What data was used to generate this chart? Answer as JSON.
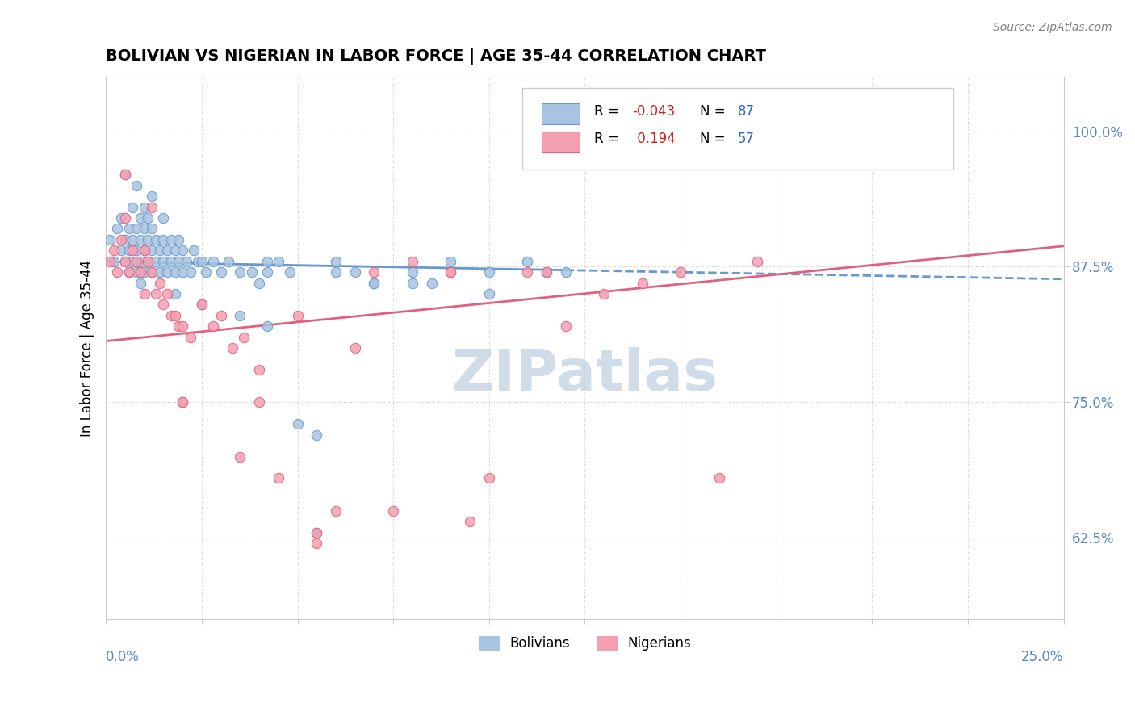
{
  "title": "BOLIVIAN VS NIGERIAN IN LABOR FORCE | AGE 35-44 CORRELATION CHART",
  "source_text": "Source: ZipAtlas.com",
  "ylabel": "In Labor Force | Age 35-44",
  "ytick_values": [
    0.625,
    0.75,
    0.875,
    1.0
  ],
  "xlim": [
    0.0,
    0.25
  ],
  "ylim": [
    0.55,
    1.05
  ],
  "blue_R": -0.043,
  "blue_N": 87,
  "pink_R": 0.194,
  "pink_N": 57,
  "blue_color": "#a8c4e0",
  "pink_color": "#f4a0b0",
  "blue_line_color": "#6699cc",
  "pink_line_color": "#e06080",
  "legend_blue_label": "Bolivians",
  "legend_pink_label": "Nigerians",
  "watermark": "ZIPatlas",
  "watermark_color": "#d0dce8",
  "blue_points_x": [
    0.001,
    0.002,
    0.003,
    0.004,
    0.004,
    0.005,
    0.005,
    0.006,
    0.006,
    0.006,
    0.007,
    0.007,
    0.007,
    0.008,
    0.008,
    0.008,
    0.009,
    0.009,
    0.009,
    0.009,
    0.01,
    0.01,
    0.01,
    0.01,
    0.011,
    0.011,
    0.011,
    0.012,
    0.012,
    0.012,
    0.013,
    0.013,
    0.014,
    0.014,
    0.015,
    0.015,
    0.015,
    0.016,
    0.016,
    0.017,
    0.017,
    0.018,
    0.018,
    0.019,
    0.019,
    0.02,
    0.02,
    0.021,
    0.022,
    0.023,
    0.024,
    0.025,
    0.026,
    0.028,
    0.03,
    0.032,
    0.035,
    0.038,
    0.04,
    0.042,
    0.045,
    0.048,
    0.05,
    0.055,
    0.06,
    0.065,
    0.07,
    0.08,
    0.09,
    0.1,
    0.11,
    0.12,
    0.005,
    0.008,
    0.012,
    0.018,
    0.025,
    0.035,
    0.042,
    0.055,
    0.07,
    0.085,
    0.1,
    0.115,
    0.042,
    0.06,
    0.08
  ],
  "blue_points_y": [
    0.9,
    0.88,
    0.91,
    0.89,
    0.92,
    0.88,
    0.9,
    0.87,
    0.89,
    0.91,
    0.88,
    0.9,
    0.93,
    0.87,
    0.89,
    0.91,
    0.86,
    0.88,
    0.9,
    0.92,
    0.87,
    0.89,
    0.91,
    0.93,
    0.88,
    0.9,
    0.92,
    0.87,
    0.89,
    0.91,
    0.88,
    0.9,
    0.87,
    0.89,
    0.88,
    0.9,
    0.92,
    0.87,
    0.89,
    0.88,
    0.9,
    0.87,
    0.89,
    0.88,
    0.9,
    0.87,
    0.89,
    0.88,
    0.87,
    0.89,
    0.88,
    0.88,
    0.87,
    0.88,
    0.87,
    0.88,
    0.87,
    0.87,
    0.86,
    0.87,
    0.88,
    0.87,
    0.73,
    0.72,
    0.87,
    0.87,
    0.86,
    0.86,
    0.88,
    0.87,
    0.88,
    0.87,
    0.96,
    0.95,
    0.94,
    0.85,
    0.84,
    0.83,
    0.82,
    0.63,
    0.86,
    0.86,
    0.85,
    0.87,
    0.88,
    0.88,
    0.87
  ],
  "pink_points_x": [
    0.001,
    0.002,
    0.003,
    0.004,
    0.005,
    0.006,
    0.007,
    0.008,
    0.009,
    0.01,
    0.011,
    0.012,
    0.013,
    0.014,
    0.015,
    0.016,
    0.017,
    0.018,
    0.019,
    0.02,
    0.022,
    0.025,
    0.028,
    0.03,
    0.033,
    0.036,
    0.04,
    0.045,
    0.05,
    0.055,
    0.06,
    0.07,
    0.08,
    0.09,
    0.1,
    0.11,
    0.12,
    0.13,
    0.14,
    0.15,
    0.16,
    0.17,
    0.005,
    0.012,
    0.02,
    0.035,
    0.055,
    0.075,
    0.095,
    0.115,
    0.005,
    0.01,
    0.02,
    0.04,
    0.065,
    0.09,
    0.12
  ],
  "pink_points_y": [
    0.88,
    0.89,
    0.87,
    0.9,
    0.88,
    0.87,
    0.89,
    0.88,
    0.87,
    0.89,
    0.88,
    0.87,
    0.85,
    0.86,
    0.84,
    0.85,
    0.83,
    0.83,
    0.82,
    0.82,
    0.81,
    0.84,
    0.82,
    0.83,
    0.8,
    0.81,
    0.78,
    0.68,
    0.83,
    0.63,
    0.65,
    0.87,
    0.88,
    0.87,
    0.68,
    0.87,
    0.82,
    0.85,
    0.86,
    0.87,
    0.68,
    0.88,
    0.92,
    0.93,
    0.75,
    0.7,
    0.62,
    0.65,
    0.64,
    0.87,
    0.96,
    0.85,
    0.75,
    0.75,
    0.8,
    0.87,
    0.98
  ]
}
